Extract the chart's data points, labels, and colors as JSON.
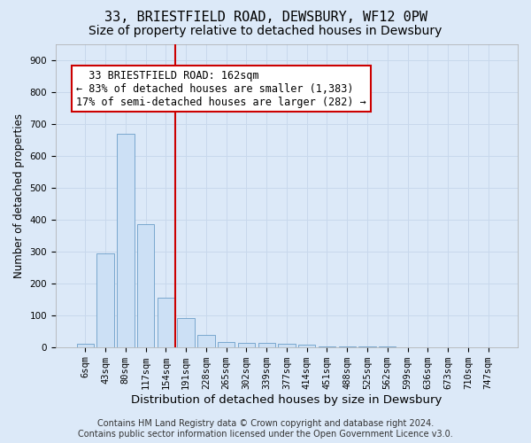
{
  "title": "33, BRIESTFIELD ROAD, DEWSBURY, WF12 0PW",
  "subtitle": "Size of property relative to detached houses in Dewsbury",
  "xlabel": "Distribution of detached houses by size in Dewsbury",
  "ylabel": "Number of detached properties",
  "bar_labels": [
    "6sqm",
    "43sqm",
    "80sqm",
    "117sqm",
    "154sqm",
    "191sqm",
    "228sqm",
    "265sqm",
    "302sqm",
    "339sqm",
    "377sqm",
    "414sqm",
    "451sqm",
    "488sqm",
    "525sqm",
    "562sqm",
    "599sqm",
    "636sqm",
    "673sqm",
    "710sqm",
    "747sqm"
  ],
  "bar_values": [
    10,
    295,
    670,
    385,
    155,
    90,
    38,
    15,
    13,
    13,
    10,
    8,
    2,
    1,
    1,
    1,
    0,
    0,
    0,
    0,
    0
  ],
  "bar_color": "#cce0f5",
  "bar_edge_color": "#6b9ec8",
  "background_color": "#dce9f8",
  "grid_color": "#c8d8ec",
  "vline_color": "#cc0000",
  "vline_x": 4.47,
  "annotation_text": "  33 BRIESTFIELD ROAD: 162sqm\n← 83% of detached houses are smaller (1,383)\n17% of semi-detached houses are larger (282) →",
  "annotation_box_color": "#ffffff",
  "annotation_box_edge_color": "#cc0000",
  "ylim": [
    0,
    950
  ],
  "yticks": [
    0,
    100,
    200,
    300,
    400,
    500,
    600,
    700,
    800,
    900
  ],
  "footer_text": "Contains HM Land Registry data © Crown copyright and database right 2024.\nContains public sector information licensed under the Open Government Licence v3.0.",
  "title_fontsize": 11,
  "subtitle_fontsize": 10,
  "xlabel_fontsize": 9.5,
  "ylabel_fontsize": 8.5,
  "tick_fontsize": 7.5,
  "annotation_fontsize": 8.5,
  "footer_fontsize": 7
}
